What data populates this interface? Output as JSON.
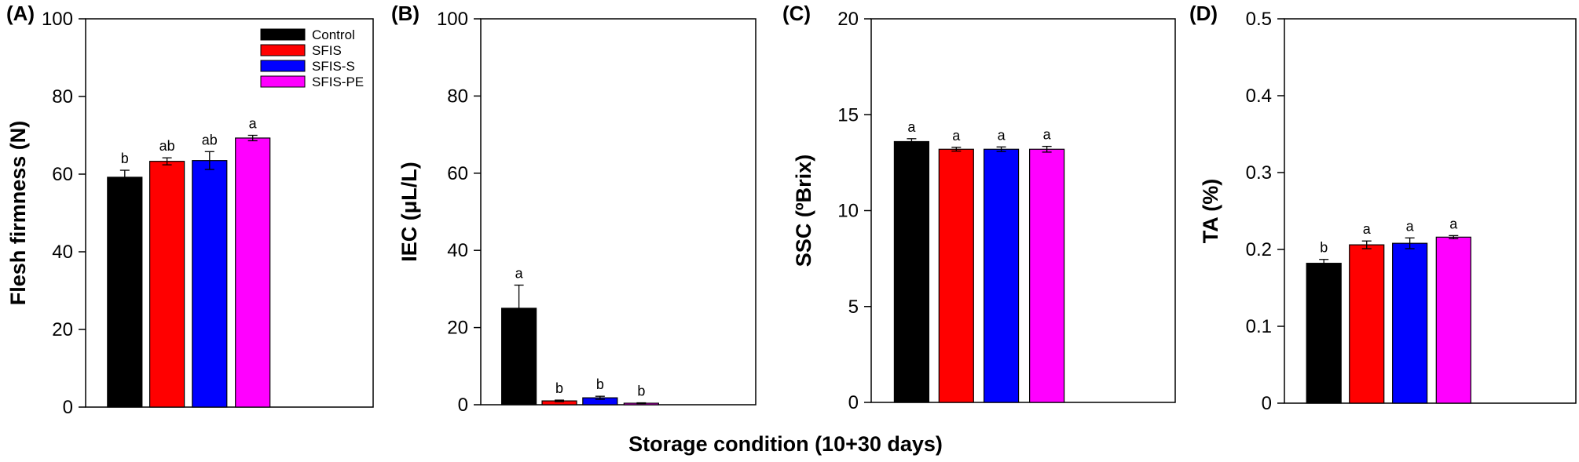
{
  "figure": {
    "shared_xlabel": "Storage condition (10+30 days)"
  },
  "series": [
    {
      "name": "Control",
      "color": "#000000"
    },
    {
      "name": "SFIS",
      "color": "#ff0000"
    },
    {
      "name": "SFIS-S",
      "color": "#0000ff"
    },
    {
      "name": "SFIS-PE",
      "color": "#ff00ff"
    }
  ],
  "chart_data": [
    {
      "type": "bar",
      "panel": "(A)",
      "ylabel": "Flesh firmness (N)",
      "ylim": [
        0,
        100
      ],
      "yticks": [
        "0",
        "20",
        "40",
        "60",
        "80",
        "100"
      ],
      "categories": [
        "Control",
        "SFIS",
        "SFIS-S",
        "SFIS-PE"
      ],
      "values": [
        59.2,
        63.3,
        63.5,
        69.3
      ],
      "errors": [
        1.8,
        0.9,
        2.3,
        0.7
      ],
      "significance": [
        "b",
        "ab",
        "ab",
        "a"
      ],
      "legend": "top-right"
    },
    {
      "type": "bar",
      "panel": "(B)",
      "ylabel": "IEC (μL/L)",
      "ylim": [
        0,
        100
      ],
      "yticks": [
        "0",
        "20",
        "40",
        "60",
        "80",
        "100"
      ],
      "categories": [
        "Control",
        "SFIS",
        "SFIS-S",
        "SFIS-PE"
      ],
      "values": [
        25.0,
        1.0,
        1.8,
        0.4
      ],
      "errors": [
        6.0,
        0.2,
        0.4,
        0.1
      ],
      "significance": [
        "a",
        "b",
        "b",
        "b"
      ]
    },
    {
      "type": "bar",
      "panel": "(C)",
      "ylabel": "SSC (ºBrix)",
      "ylim": [
        0,
        20
      ],
      "yticks": [
        "0",
        "5",
        "10",
        "15",
        "20"
      ],
      "categories": [
        "Control",
        "SFIS",
        "SFIS-S",
        "SFIS-PE"
      ],
      "values": [
        13.6,
        13.2,
        13.2,
        13.2
      ],
      "errors": [
        0.15,
        0.1,
        0.12,
        0.15
      ],
      "significance": [
        "a",
        "a",
        "a",
        "a"
      ]
    },
    {
      "type": "bar",
      "panel": "(D)",
      "ylabel": "TA (%)",
      "ylim": [
        0,
        0.5
      ],
      "yticks": [
        "0",
        "0.1",
        "0.2",
        "0.3",
        "0.4",
        "0.5"
      ],
      "categories": [
        "Control",
        "SFIS",
        "SFIS-S",
        "SFIS-PE"
      ],
      "values": [
        0.182,
        0.206,
        0.208,
        0.216
      ],
      "errors": [
        0.005,
        0.005,
        0.007,
        0.002
      ],
      "significance": [
        "b",
        "a",
        "a",
        "a"
      ]
    }
  ]
}
